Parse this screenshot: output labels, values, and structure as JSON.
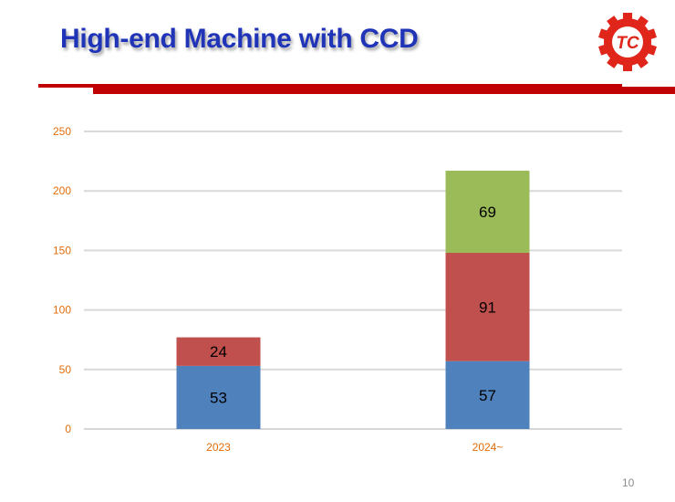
{
  "slide": {
    "title": "High-end Machine with CCD",
    "page_number": "10",
    "logo_text": "TC",
    "accent_color": "#c00000",
    "title_color": "#2034b8",
    "logo_icon": "gear-logo-icon"
  },
  "chart_data": {
    "type": "bar",
    "stacked": true,
    "categories": [
      "2023",
      "2024~"
    ],
    "series": [
      {
        "values": [
          53,
          57
        ],
        "color": "#4f81bd"
      },
      {
        "values": [
          24,
          91
        ],
        "color": "#c0504d"
      },
      {
        "values": [
          0,
          69
        ],
        "color": "#9bbb59"
      }
    ],
    "y_ticks": [
      "0",
      "50",
      "100",
      "150",
      "200",
      "250"
    ],
    "ylim": [
      0,
      250
    ],
    "grid": true,
    "legend": "none",
    "tick_label_color": "#e36c09"
  }
}
